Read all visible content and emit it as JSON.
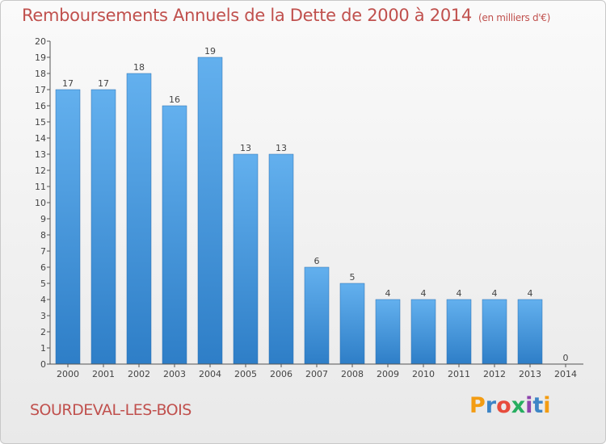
{
  "header": {
    "title": "Remboursements Annuels de la Dette de 2000 à 2014",
    "unit": "(en milliers d'€)"
  },
  "footer": {
    "place": "SOURDEVAL-LES-BOIS",
    "logo_text": "Proxiti"
  },
  "colors": {
    "title": "#c0504d",
    "bar_top": "#63b0ee",
    "bar_bottom": "#2e7ec7",
    "logo_letters": [
      "#f39c12",
      "#3d85c6",
      "#e74c3c",
      "#27ae60",
      "#8e44ad",
      "#3d85c6",
      "#f39c12"
    ]
  },
  "chart_data": {
    "type": "bar",
    "title": "Remboursements Annuels de la Dette de 2000 à 2014",
    "categories": [
      "2000",
      "2001",
      "2002",
      "2003",
      "2004",
      "2005",
      "2006",
      "2007",
      "2008",
      "2009",
      "2010",
      "2011",
      "2012",
      "2013",
      "2014"
    ],
    "values": [
      17,
      17,
      18,
      16,
      19,
      13,
      13,
      6,
      5,
      4,
      4,
      4,
      4,
      4,
      0
    ],
    "xlabel": "",
    "ylabel": "",
    "ylim": [
      0,
      20
    ],
    "yticks": [
      "0",
      "1",
      "2",
      "3",
      "4",
      "5",
      "6",
      "7",
      "8",
      "9",
      "10",
      "11",
      "12",
      "13",
      "14",
      "15",
      "16",
      "17",
      "18",
      "19",
      "20"
    ],
    "grid": false,
    "legend": "none"
  }
}
